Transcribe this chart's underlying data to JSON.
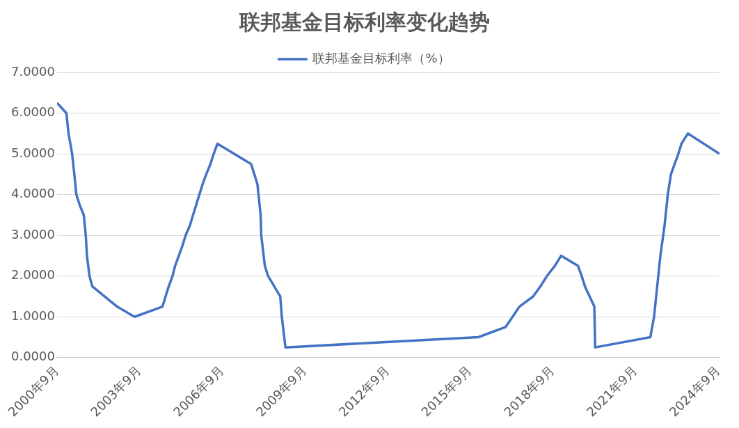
{
  "chart_data": {
    "type": "line",
    "title": "联邦基金目标利率变化趋势",
    "legend": "top",
    "grid": "y",
    "marker": "none",
    "line_style": "solid",
    "xlim": [
      "2000-09",
      "2024-09-18"
    ],
    "xticks": [
      {
        "value": "2000-09",
        "label": "2000年9月"
      },
      {
        "value": "2003-09",
        "label": "2003年9月"
      },
      {
        "value": "2006-09",
        "label": "2006年9月"
      },
      {
        "value": "2009-09",
        "label": "2009年9月"
      },
      {
        "value": "2012-09",
        "label": "2012年9月"
      },
      {
        "value": "2015-09",
        "label": "2015年9月"
      },
      {
        "value": "2018-09",
        "label": "2018年9月"
      },
      {
        "value": "2021-09",
        "label": "2021年9月"
      },
      {
        "value": "2024-09",
        "label": "2024年9月"
      }
    ],
    "ylim": [
      0,
      7
    ],
    "yticks": [
      {
        "value": 0,
        "label": "0.0000"
      },
      {
        "value": 1,
        "label": "1.0000"
      },
      {
        "value": 2,
        "label": "2.0000"
      },
      {
        "value": 3,
        "label": "3.0000"
      },
      {
        "value": 4,
        "label": "4.0000"
      },
      {
        "value": 5,
        "label": "5.0000"
      },
      {
        "value": 6,
        "label": "6.0000"
      },
      {
        "value": 7,
        "label": "7.0000"
      }
    ],
    "x": [
      "2000-09",
      "2001-01-03",
      "2001-01-31",
      "2001-03-20",
      "2001-04-18",
      "2001-05-15",
      "2001-06-27",
      "2001-08-21",
      "2001-09-17",
      "2001-10-02",
      "2001-11-06",
      "2001-12-11",
      "2002-11-06",
      "2003-06-25",
      "2004-06-30",
      "2004-08-10",
      "2004-09-21",
      "2004-11-10",
      "2004-12-14",
      "2005-02-02",
      "2005-03-22",
      "2005-05-03",
      "2005-06-30",
      "2005-08-09",
      "2005-09-20",
      "2005-11-01",
      "2005-12-13",
      "2006-01-31",
      "2006-03-28",
      "2006-05-10",
      "2006-06-29",
      "2007-09-18",
      "2007-10-31",
      "2007-12-11",
      "2008-01-22",
      "2008-01-30",
      "2008-03-18",
      "2008-04-30",
      "2008-10-08",
      "2008-10-29",
      "2008-12-16",
      "2015-12-16",
      "2016-12-14",
      "2017-03-15",
      "2017-06-14",
      "2017-12-13",
      "2018-03-21",
      "2018-06-13",
      "2018-09-26",
      "2018-12-19",
      "2019-07-31",
      "2019-09-18",
      "2019-10-30",
      "2020-03-03",
      "2020-03-15",
      "2022-03-16",
      "2022-05-04",
      "2022-06-15",
      "2022-07-27",
      "2022-09-21",
      "2022-11-02",
      "2022-12-14",
      "2023-02-01",
      "2023-03-22",
      "2023-05-03",
      "2023-07-26",
      "2024-09-18"
    ],
    "series": [
      {
        "name": "联邦基金目标利率（%）",
        "color": "#4472c4",
        "values": [
          6.25,
          6.0,
          5.5,
          5.0,
          4.5,
          4.0,
          3.75,
          3.5,
          3.0,
          2.5,
          2.0,
          1.75,
          1.25,
          1.0,
          1.25,
          1.5,
          1.75,
          2.0,
          2.25,
          2.5,
          2.75,
          3.0,
          3.25,
          3.5,
          3.75,
          4.0,
          4.25,
          4.5,
          4.75,
          5.0,
          5.25,
          4.75,
          4.5,
          4.25,
          3.5,
          3.0,
          2.25,
          2.0,
          1.5,
          1.0,
          0.25,
          0.5,
          0.75,
          1.0,
          1.25,
          1.5,
          1.75,
          2.0,
          2.25,
          2.5,
          2.25,
          2.0,
          1.75,
          1.25,
          0.25,
          0.5,
          1.0,
          1.75,
          2.5,
          3.25,
          4.0,
          4.5,
          4.75,
          5.0,
          5.25,
          5.5,
          5.0
        ]
      }
    ]
  }
}
